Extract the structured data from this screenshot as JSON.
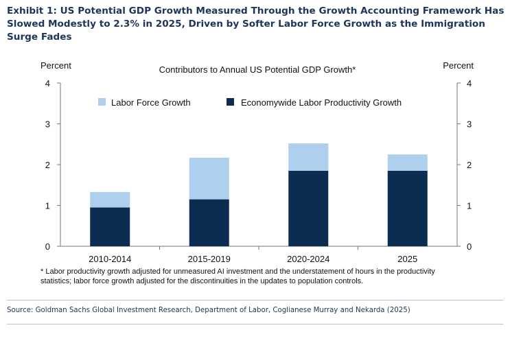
{
  "exhibit": {
    "title": "Exhibit 1: US Potential GDP Growth Measured Through the Growth Accounting Framework Has Slowed Modestly to 2.3% in 2025, Driven by Softer Labor Force Growth as the Immigration Surge Fades",
    "footnote": "* Labor productivity growth adjusted for unmeasured AI investment and the understatement of hours in the productivity statistics; labor force growth adjusted for the discontinuities in the updates to population controls.",
    "source": "Source: Goldman Sachs Global Investment Research, Department of Labor, Coglianese Murray and Nekarda (2025)"
  },
  "chart_data": {
    "type": "bar",
    "stacked": true,
    "title": "Contributors to Annual US Potential GDP Growth*",
    "ylabel_left": "Percent",
    "ylabel_right": "Percent",
    "ylim": [
      0,
      4
    ],
    "yticks": [
      "0",
      "1",
      "2",
      "3",
      "4"
    ],
    "categories": [
      "2010-2014",
      "2015-2019",
      "2020-2024",
      "2025"
    ],
    "series": [
      {
        "name": "Economywide Labor Productivity Growth",
        "color": "#0b2d52",
        "values": [
          0.95,
          1.15,
          1.85,
          1.85
        ]
      },
      {
        "name": "Labor Force Growth",
        "color": "#aecfee",
        "values": [
          0.38,
          1.02,
          0.67,
          0.4
        ]
      }
    ],
    "legend": [
      {
        "name": "Labor Force Growth",
        "color": "#aecfee"
      },
      {
        "name": "Economywide Labor Productivity Growth",
        "color": "#0b2d52"
      }
    ],
    "legend_position": "top",
    "grid": false
  }
}
